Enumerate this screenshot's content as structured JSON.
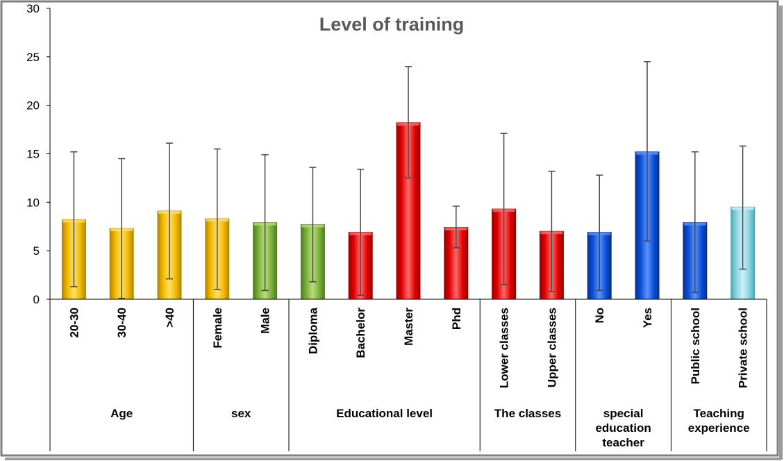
{
  "chart_data": {
    "type": "bar",
    "title": "Level of training",
    "xlabel": "",
    "ylabel": "",
    "ylim": [
      0,
      30
    ],
    "yticks": [
      0,
      5,
      10,
      15,
      20,
      25,
      30
    ],
    "grid": false,
    "legend": "none",
    "categories": [
      "20-30",
      "30-40",
      ">40",
      "Female",
      "Male",
      "Diploma",
      "Bachelor",
      "Master",
      "Phd",
      "Lower classes",
      "Upper classes",
      "No",
      "Yes",
      "Public school",
      "Private school"
    ],
    "values": [
      8.2,
      7.3,
      9.1,
      8.3,
      7.9,
      7.7,
      6.9,
      18.2,
      7.4,
      9.3,
      7.0,
      6.9,
      15.2,
      7.9,
      9.5
    ],
    "error_low": [
      1.3,
      0.1,
      2.1,
      1.0,
      0.9,
      1.8,
      0.4,
      12.5,
      5.3,
      1.5,
      0.8,
      0.9,
      6.0,
      0.7,
      3.1
    ],
    "error_high": [
      15.2,
      14.5,
      16.1,
      15.5,
      14.9,
      13.6,
      13.4,
      24.0,
      9.6,
      17.1,
      13.2,
      12.8,
      24.5,
      15.2,
      15.8
    ],
    "colors": [
      "gold",
      "gold",
      "gold",
      "gold",
      "green",
      "green",
      "red",
      "red",
      "red",
      "red",
      "red",
      "blue",
      "blue",
      "blue",
      "cyan"
    ],
    "groups": [
      {
        "label_lines": [
          "Age"
        ],
        "start": 0,
        "count": 3
      },
      {
        "label_lines": [
          "sex"
        ],
        "start": 3,
        "count": 2
      },
      {
        "label_lines": [
          "Educational level"
        ],
        "start": 5,
        "count": 4
      },
      {
        "label_lines": [
          "The classes"
        ],
        "start": 9,
        "count": 2
      },
      {
        "label_lines": [
          "special",
          "education",
          "teacher"
        ],
        "start": 11,
        "count": 2
      },
      {
        "label_lines": [
          "Teaching",
          "experience"
        ],
        "start": 13,
        "count": 2
      }
    ]
  },
  "palette": {
    "gold": [
      "#f2b800",
      "#ffe066",
      "#b38500"
    ],
    "green": [
      "#78b03a",
      "#b9dc7a",
      "#4f7d22"
    ],
    "red": [
      "#e00000",
      "#ff6b6b",
      "#990000"
    ],
    "blue": [
      "#0b4fd6",
      "#5b92ff",
      "#082f8f"
    ],
    "cyan": [
      "#8ad3df",
      "#cbf0f5",
      "#4fa8b6"
    ],
    "axis": "#000000",
    "error_bar": "#444444",
    "title": "#595959"
  }
}
